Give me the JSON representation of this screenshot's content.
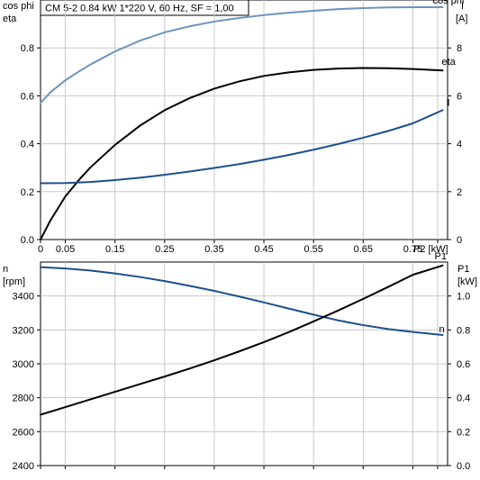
{
  "header": {
    "text": "CM 5-2   0.84 kW   1*220 V, 60 Hz, SF = 1,00"
  },
  "chart_data": [
    {
      "type": "line",
      "x_label": "P2 [kW]",
      "x_ticks": [
        "0",
        "0.05",
        "0.15",
        "0.25",
        "0.35",
        "0.45",
        "0.55",
        "0.65",
        "0.75"
      ],
      "x_tick_values": [
        0,
        0.05,
        0.15,
        0.25,
        0.35,
        0.45,
        0.55,
        0.65,
        0.75
      ],
      "xlim": [
        0,
        0.82
      ],
      "left_axis": {
        "label_line1": "cos phi",
        "label_line2": "eta",
        "ticks": [
          "0.0",
          "0.2",
          "0.4",
          "0.6",
          "0.8"
        ],
        "tick_values": [
          0,
          0.2,
          0.4,
          0.6,
          0.8
        ],
        "ylim": [
          0,
          1.0
        ]
      },
      "right_axis": {
        "label_line1": "I",
        "label_line2": "[A]",
        "ticks": [
          "0",
          "2",
          "4",
          "6",
          "8"
        ],
        "tick_values": [
          0,
          2,
          4,
          6,
          8
        ],
        "ylim": [
          0,
          10
        ]
      },
      "grid": true,
      "series": [
        {
          "name": "cos phi",
          "axis": "left",
          "color": "#6d94be",
          "x": [
            0,
            0.02,
            0.05,
            0.08,
            0.1,
            0.15,
            0.2,
            0.25,
            0.3,
            0.35,
            0.4,
            0.45,
            0.5,
            0.55,
            0.6,
            0.65,
            0.7,
            0.75,
            0.8,
            0.81
          ],
          "y": [
            0.57,
            0.615,
            0.665,
            0.705,
            0.73,
            0.785,
            0.83,
            0.865,
            0.89,
            0.91,
            0.925,
            0.937,
            0.947,
            0.955,
            0.962,
            0.966,
            0.969,
            0.97,
            0.97,
            0.97
          ]
        },
        {
          "name": "eta",
          "axis": "left",
          "color": "#000000",
          "x": [
            0,
            0.02,
            0.05,
            0.08,
            0.1,
            0.15,
            0.2,
            0.25,
            0.3,
            0.35,
            0.4,
            0.45,
            0.5,
            0.55,
            0.6,
            0.65,
            0.7,
            0.75,
            0.81
          ],
          "y": [
            0.0,
            0.08,
            0.18,
            0.255,
            0.3,
            0.395,
            0.475,
            0.54,
            0.59,
            0.63,
            0.66,
            0.683,
            0.698,
            0.708,
            0.714,
            0.716,
            0.715,
            0.712,
            0.706
          ]
        },
        {
          "name": "I",
          "axis": "right",
          "color": "#1e4f8c",
          "x": [
            0,
            0.05,
            0.1,
            0.15,
            0.2,
            0.25,
            0.3,
            0.35,
            0.4,
            0.45,
            0.5,
            0.55,
            0.6,
            0.65,
            0.7,
            0.75,
            0.81
          ],
          "y": [
            2.35,
            2.36,
            2.4,
            2.48,
            2.58,
            2.7,
            2.84,
            2.99,
            3.15,
            3.33,
            3.53,
            3.75,
            3.99,
            4.25,
            4.53,
            4.85,
            5.4
          ]
        }
      ]
    },
    {
      "type": "line",
      "xlim": [
        0,
        0.82
      ],
      "left_axis": {
        "label_line1": "n",
        "label_line2": "[rpm]",
        "ticks": [
          "2400",
          "2600",
          "2800",
          "3000",
          "3200",
          "3400"
        ],
        "tick_values": [
          2400,
          2600,
          2800,
          3000,
          3200,
          3400
        ],
        "ylim": [
          2400,
          3600
        ]
      },
      "right_axis": {
        "label_line1": "P1",
        "label_line2": "[kW]",
        "ticks": [
          "0.0",
          "0.2",
          "0.4",
          "0.6",
          "0.8",
          "1.0"
        ],
        "tick_values": [
          0,
          0.2,
          0.4,
          0.6,
          0.8,
          1.0
        ],
        "ylim": [
          0,
          1.2
        ]
      },
      "grid": true,
      "series": [
        {
          "name": "n",
          "axis": "left",
          "color": "#1e4f8c",
          "x": [
            0,
            0.05,
            0.1,
            0.15,
            0.2,
            0.25,
            0.3,
            0.35,
            0.4,
            0.45,
            0.5,
            0.55,
            0.6,
            0.65,
            0.7,
            0.75,
            0.81
          ],
          "y": [
            3570,
            3562,
            3550,
            3533,
            3512,
            3488,
            3460,
            3430,
            3397,
            3362,
            3326,
            3290,
            3256,
            3228,
            3205,
            3188,
            3170
          ]
        },
        {
          "name": "P1",
          "axis": "right",
          "color": "#000000",
          "x": [
            0,
            0.05,
            0.1,
            0.15,
            0.2,
            0.25,
            0.3,
            0.35,
            0.4,
            0.45,
            0.5,
            0.55,
            0.6,
            0.65,
            0.7,
            0.75,
            0.81
          ],
          "y": [
            0.3,
            0.345,
            0.39,
            0.435,
            0.48,
            0.525,
            0.572,
            0.621,
            0.673,
            0.728,
            0.787,
            0.85,
            0.915,
            0.983,
            1.053,
            1.125,
            1.18
          ]
        }
      ]
    }
  ]
}
